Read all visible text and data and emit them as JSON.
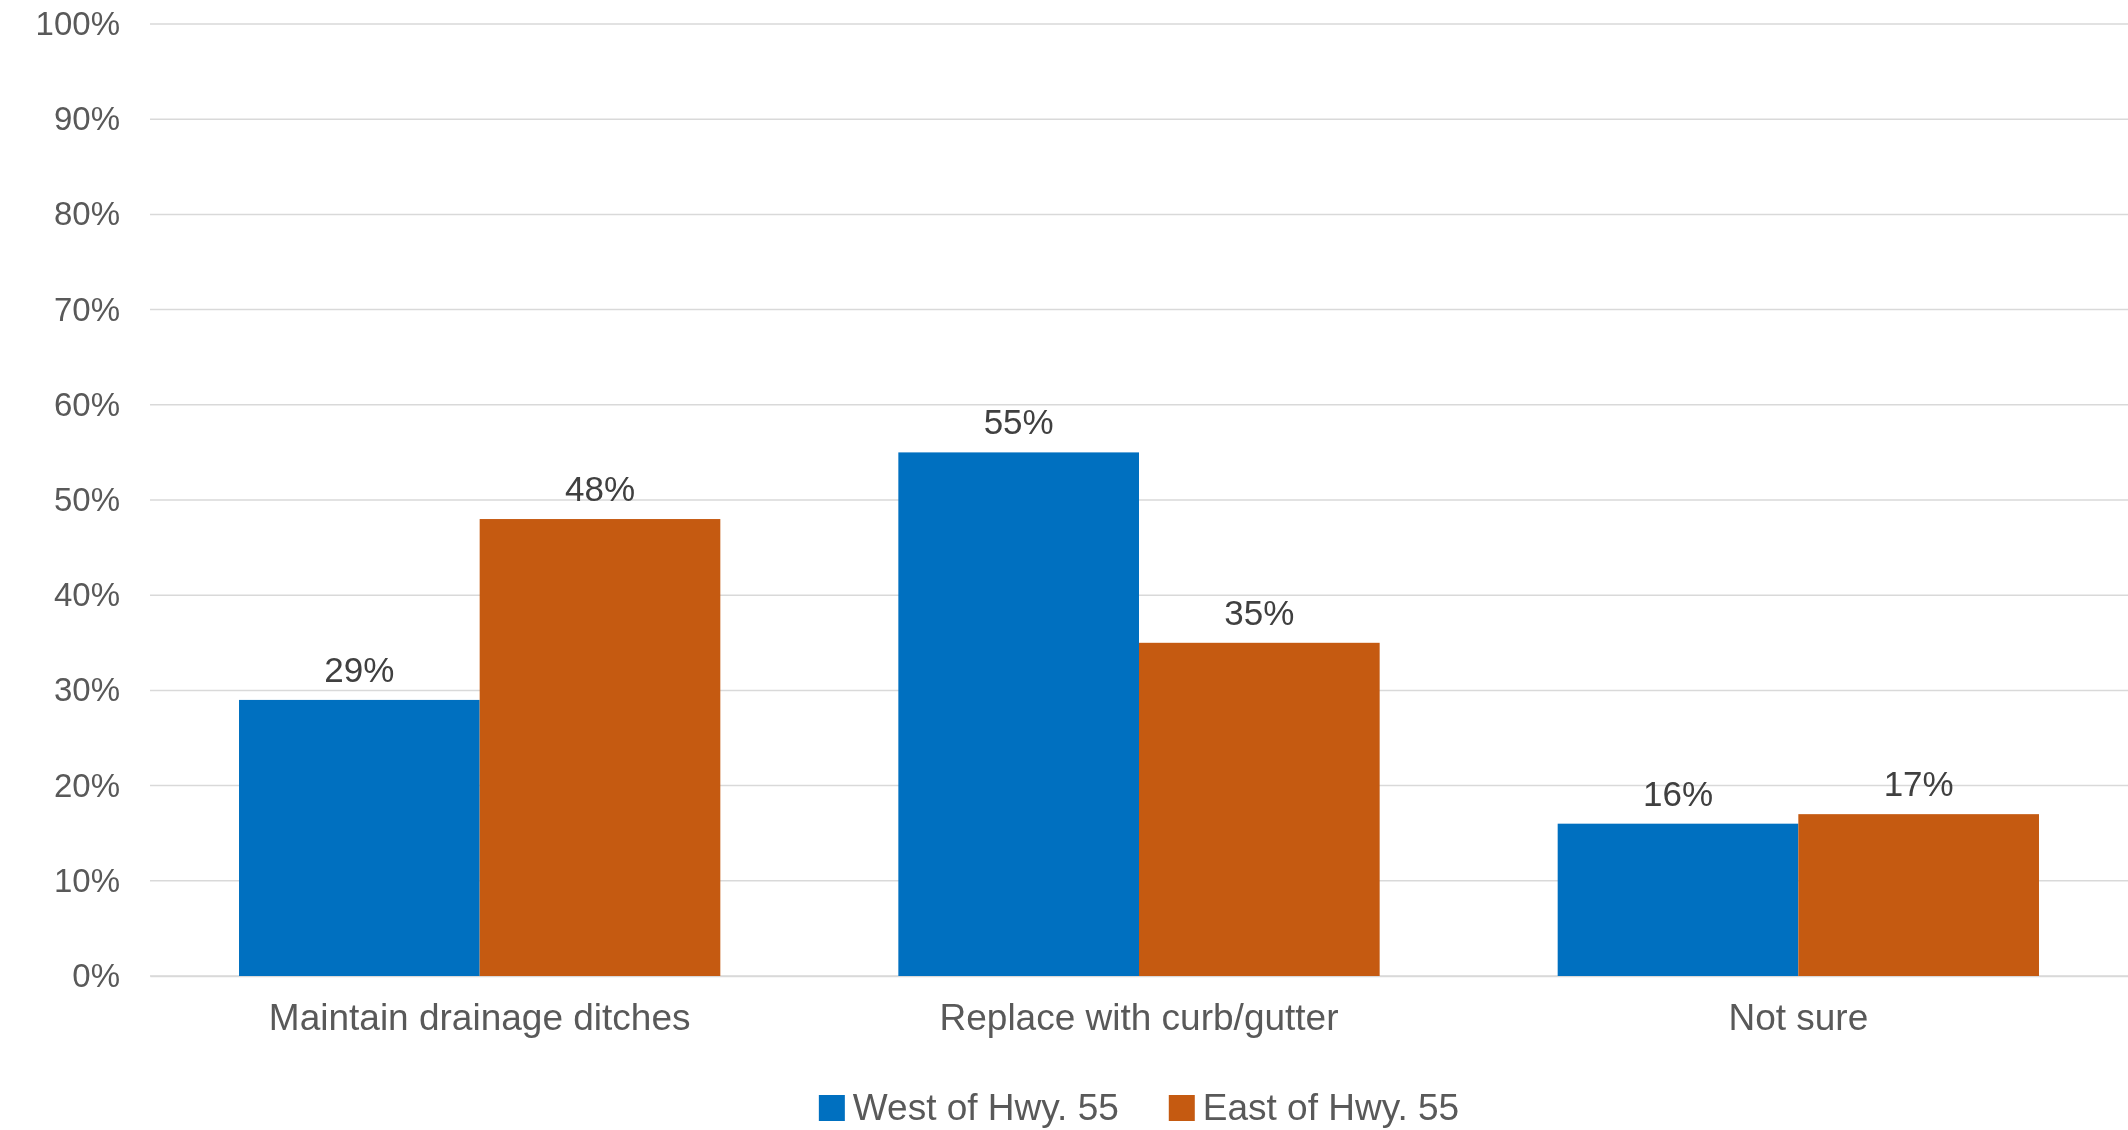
{
  "chart_data": {
    "type": "bar",
    "categories": [
      "Maintain drainage ditches",
      "Replace with curb/gutter",
      "Not sure"
    ],
    "series": [
      {
        "name": "West of Hwy. 55",
        "color": "#0070c0",
        "values": [
          29,
          55,
          16
        ],
        "value_labels": [
          "29%",
          "55%",
          "16%"
        ]
      },
      {
        "name": "East of Hwy. 55",
        "color": "#c55a11",
        "values": [
          48,
          35,
          17
        ],
        "value_labels": [
          "48%",
          "35%",
          "17%"
        ]
      }
    ],
    "ylim": [
      0,
      100
    ],
    "yticks": [
      {
        "value": 0,
        "label": "0%"
      },
      {
        "value": 10,
        "label": "10%"
      },
      {
        "value": 20,
        "label": "20%"
      },
      {
        "value": 30,
        "label": "30%"
      },
      {
        "value": 40,
        "label": "40%"
      },
      {
        "value": 50,
        "label": "50%"
      },
      {
        "value": 60,
        "label": "60%"
      },
      {
        "value": 70,
        "label": "70%"
      },
      {
        "value": 80,
        "label": "80%"
      },
      {
        "value": 90,
        "label": "90%"
      },
      {
        "value": 100,
        "label": "100%"
      }
    ],
    "grid": "y",
    "legend": "bottom"
  }
}
